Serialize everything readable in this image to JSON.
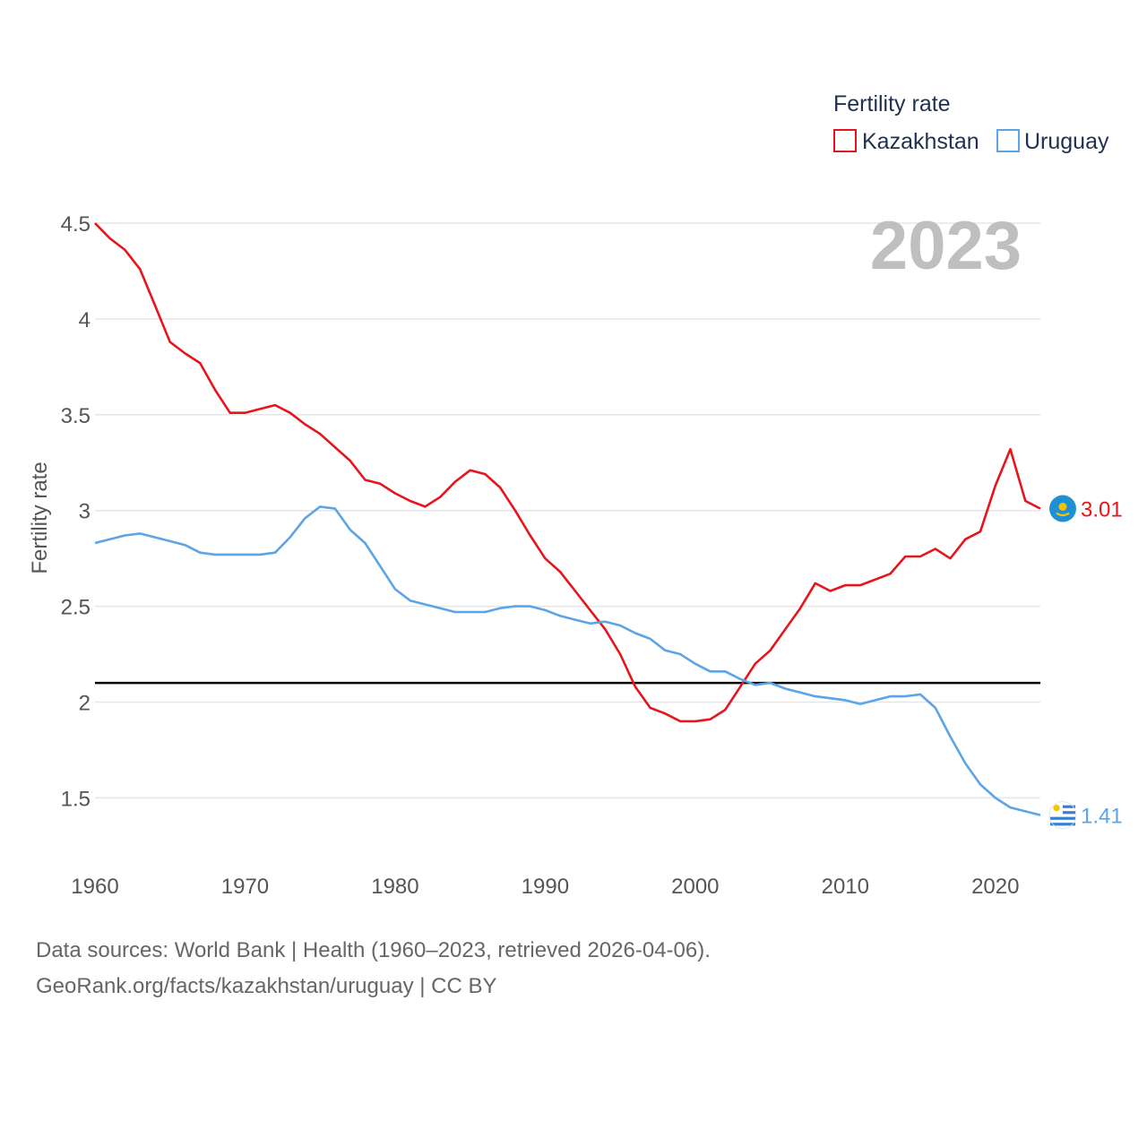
{
  "chart_data": {
    "type": "line",
    "title": "Fertility rate",
    "ylabel": "Fertility rate",
    "xlabel": "",
    "year_label": "2023",
    "xlim": [
      1960,
      2023
    ],
    "ylim": [
      1.25,
      4.5
    ],
    "xticks": [
      1960,
      1970,
      1980,
      1990,
      2000,
      2010,
      2020
    ],
    "xtick_labels": [
      "1960",
      "1970",
      "1980",
      "1990",
      "2000",
      "2010",
      "2020"
    ],
    "yticks": [
      1.5,
      2,
      2.5,
      3,
      3.5,
      4,
      4.5
    ],
    "ytick_labels": [
      "1.5",
      "2",
      "2.5",
      "3",
      "3.5",
      "4",
      "4.5"
    ],
    "reference_line": 2.1,
    "x": [
      1960,
      1961,
      1962,
      1963,
      1964,
      1965,
      1966,
      1967,
      1968,
      1969,
      1970,
      1971,
      1972,
      1973,
      1974,
      1975,
      1976,
      1977,
      1978,
      1979,
      1980,
      1981,
      1982,
      1983,
      1984,
      1985,
      1986,
      1987,
      1988,
      1989,
      1990,
      1991,
      1992,
      1993,
      1994,
      1995,
      1996,
      1997,
      1998,
      1999,
      2000,
      2001,
      2002,
      2003,
      2004,
      2005,
      2006,
      2007,
      2008,
      2009,
      2010,
      2011,
      2012,
      2013,
      2014,
      2015,
      2016,
      2017,
      2018,
      2019,
      2020,
      2021,
      2022,
      2023
    ],
    "series": [
      {
        "name": "Kazakhstan",
        "color": "#e8141b",
        "end_label": "3.01",
        "values": [
          4.5,
          4.42,
          4.36,
          4.26,
          4.07,
          3.88,
          3.82,
          3.77,
          3.63,
          3.51,
          3.51,
          3.53,
          3.55,
          3.51,
          3.45,
          3.4,
          3.33,
          3.26,
          3.16,
          3.14,
          3.09,
          3.05,
          3.02,
          3.07,
          3.15,
          3.21,
          3.19,
          3.12,
          3.0,
          2.87,
          2.75,
          2.68,
          2.58,
          2.48,
          2.38,
          2.25,
          2.08,
          1.97,
          1.94,
          1.9,
          1.9,
          1.91,
          1.96,
          2.08,
          2.2,
          2.27,
          2.38,
          2.49,
          2.62,
          2.58,
          2.61,
          2.61,
          2.64,
          2.67,
          2.76,
          2.76,
          2.8,
          2.75,
          2.85,
          2.89,
          3.13,
          3.32,
          3.05,
          3.01
        ]
      },
      {
        "name": "Uruguay",
        "color": "#5ca4e6",
        "end_label": "1.41",
        "values": [
          2.83,
          2.85,
          2.87,
          2.88,
          2.86,
          2.84,
          2.82,
          2.78,
          2.77,
          2.77,
          2.77,
          2.77,
          2.78,
          2.86,
          2.96,
          3.02,
          3.01,
          2.9,
          2.83,
          2.71,
          2.59,
          2.53,
          2.51,
          2.49,
          2.47,
          2.47,
          2.47,
          2.49,
          2.5,
          2.5,
          2.48,
          2.45,
          2.43,
          2.41,
          2.42,
          2.4,
          2.36,
          2.33,
          2.27,
          2.25,
          2.2,
          2.16,
          2.16,
          2.12,
          2.09,
          2.1,
          2.07,
          2.05,
          2.03,
          2.02,
          2.01,
          1.99,
          2.01,
          2.03,
          2.03,
          2.04,
          1.97,
          1.82,
          1.68,
          1.57,
          1.5,
          1.45,
          1.43,
          1.41
        ]
      }
    ]
  },
  "footer": {
    "line1": "Data sources: World Bank | Health (1960–2023, retrieved 2026-04-06).",
    "line2": "GeoRank.org/facts/kazakhstan/uruguay | CC BY"
  }
}
